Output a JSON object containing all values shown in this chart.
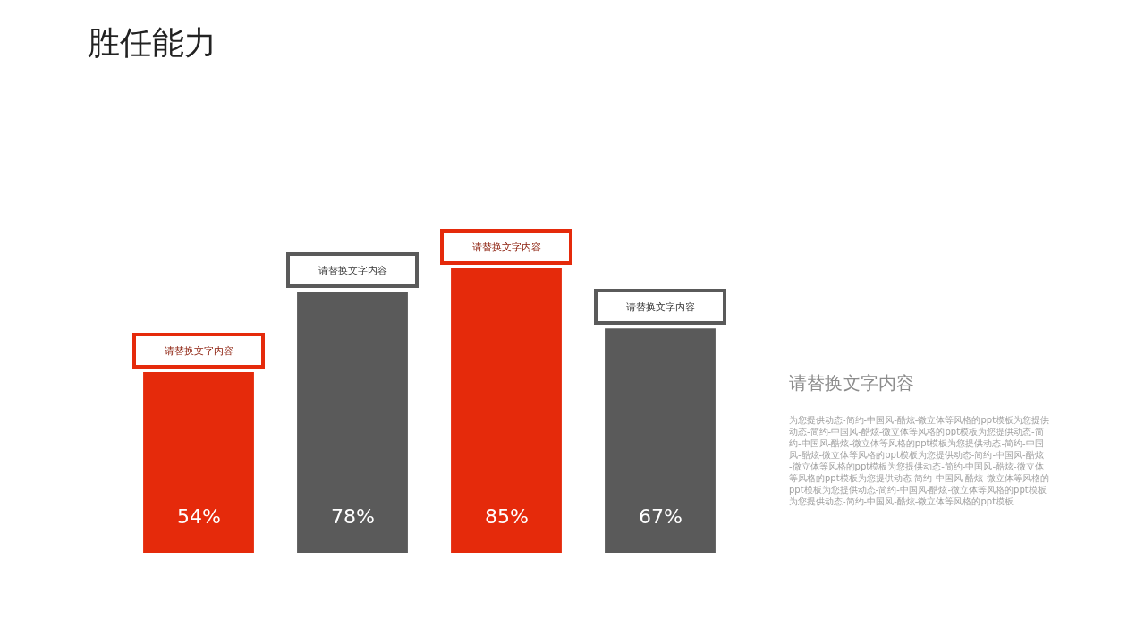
{
  "chart_data": {
    "type": "bar",
    "title": "胜任能力",
    "categories": [
      "请替换文字内容",
      "请替换文字内容",
      "请替换文字内容",
      "请替换文字内容"
    ],
    "values": [
      54,
      78,
      85,
      67
    ],
    "value_labels": [
      "54%",
      "78%",
      "85%",
      "67%"
    ],
    "colors": [
      "#e52a0b",
      "#5a5a5a",
      "#e52a0b",
      "#5a5a5a"
    ],
    "tick_labels": false,
    "annotations": [
      "请替换文字内容",
      "为您提供动态-简约-中国风-酷炫-微立体等风格的ppt模板为您提供动态-简约-中国风-酷炫-微立体等风格的ppt模板为您提供动态-简约-中国风-酷炫-微立体等风格的ppt模板为您提供动态-简约-中国风-酷炫-微立体等风格的ppt模板为您提供动态-简约-中国风-酷炫-微立体等风格的ppt模板为您提供动态-简约-中国风-酷炫-微立体等风格的ppt模板为您提供动态-简约-中国风-酷炫-微立体等风格的ppt模板为您提供动态-简约-中国风-酷炫-微立体等风格的ppt模板为您提供动态-简约-中国风-酷炫-微立体等风格的ppt模板"
    ]
  }
}
